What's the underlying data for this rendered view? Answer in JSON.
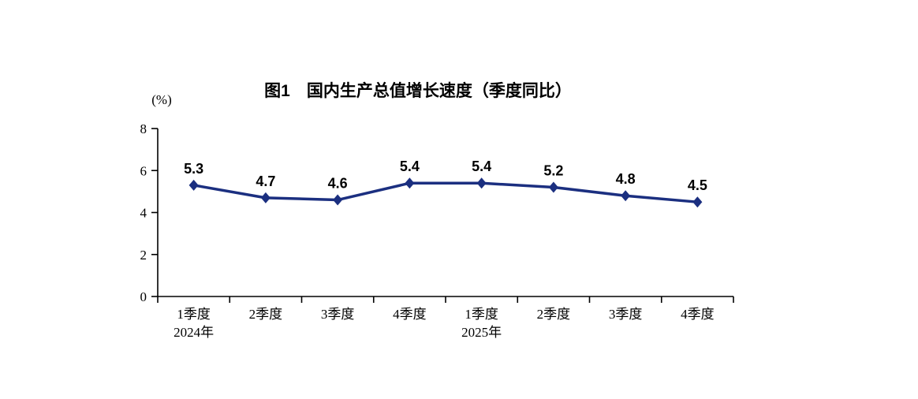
{
  "page": {
    "background_color": "#ffffff"
  },
  "chart_data": {
    "type": "line",
    "title": "图1　国内生产总值增长速度（季度同比）",
    "unit_label": "(%)",
    "categories": [
      "1季度",
      "2季度",
      "3季度",
      "4季度",
      "1季度",
      "2季度",
      "3季度",
      "4季度"
    ],
    "year_labels": [
      {
        "text": "2024年",
        "category_index": 0
      },
      {
        "text": "2025年",
        "category_index": 4
      }
    ],
    "series": [
      {
        "name": "国内生产总值增长速度（季度同比）",
        "values": [
          5.3,
          4.7,
          4.6,
          5.4,
          5.4,
          5.2,
          4.8,
          4.5
        ]
      }
    ],
    "data_labels": [
      "5.3",
      "4.7",
      "4.6",
      "5.4",
      "5.4",
      "5.2",
      "4.8",
      "4.5"
    ],
    "ylim": [
      0,
      8
    ],
    "yticks": [
      0,
      2,
      4,
      6,
      8
    ],
    "grid": false,
    "legend": false,
    "line_color": "#1b2f80",
    "marker": "diamond",
    "axis_color": "#000000",
    "label_color": "#000000"
  }
}
